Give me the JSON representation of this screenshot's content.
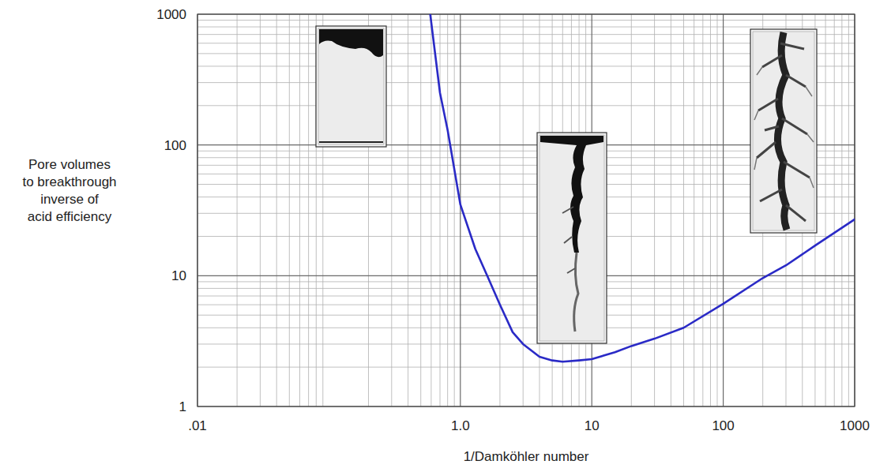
{
  "chart_data": {
    "type": "line",
    "x_label": "1/Damköhler number",
    "y_label_lines": [
      "Pore volumes",
      "to breakthrough",
      "inverse of",
      "acid efficiency"
    ],
    "log": true,
    "grid": true,
    "xlim": [
      0.01,
      1000
    ],
    "xticks": [
      {
        "value": 0.01,
        "label": ".01"
      },
      {
        "value": 1,
        "label": "1.0"
      },
      10,
      100,
      1000
    ],
    "ylim": [
      1,
      1000
    ],
    "yticks": [
      1,
      10,
      100,
      1000
    ],
    "series": [
      {
        "color": "#2a2ac6",
        "x": [
          0.59,
          0.7,
          0.8,
          1.0,
          1.3,
          1.6,
          2,
          2.5,
          3,
          4,
          5,
          6,
          8,
          10,
          15,
          20,
          30,
          50,
          100,
          200,
          300,
          500,
          1000
        ],
        "values": [
          1000,
          250,
          130,
          35,
          16,
          10,
          6,
          3.7,
          3,
          2.4,
          2.25,
          2.2,
          2.25,
          2.3,
          2.6,
          2.9,
          3.3,
          4.0,
          6.1,
          9.6,
          12,
          17,
          27
        ]
      }
    ]
  }
}
